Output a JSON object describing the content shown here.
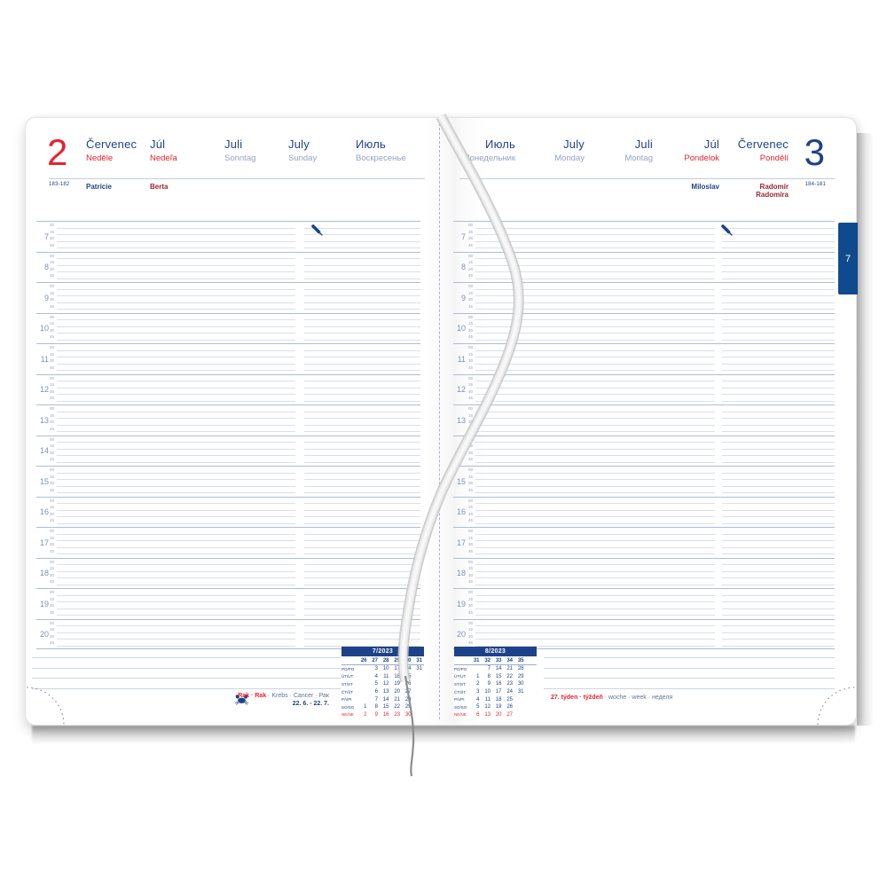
{
  "colors": {
    "blue": "#1e4289",
    "red": "#e5232e",
    "muted_blue": "#93a2c4",
    "maroon": "#9c2531",
    "tab_blue": "#0f4a8e"
  },
  "left_page": {
    "day_number": "2",
    "page_range": "183-182",
    "columns": [
      {
        "month": "Červenec",
        "day": "Neděle"
      },
      {
        "month": "Júl",
        "day": "Nedeľa"
      },
      {
        "month": "Juli",
        "day": "Sonntag"
      },
      {
        "month": "July",
        "day": "Sunday"
      },
      {
        "month": "Июль",
        "day": "Воскресенье"
      }
    ],
    "name_days": [
      {
        "name": "Patricie"
      },
      {
        "name": "Berta"
      }
    ]
  },
  "right_page": {
    "day_number": "3",
    "page_range": "184-181",
    "columns": [
      {
        "month": "Июль",
        "day": "Понедельник"
      },
      {
        "month": "July",
        "day": "Monday"
      },
      {
        "month": "Juli",
        "day": "Montag"
      },
      {
        "month": "Júl",
        "day": "Pondelok"
      },
      {
        "month": "Červenec",
        "day": "Pondělí"
      }
    ],
    "name_days": [
      {
        "name": "Miloslav"
      },
      {
        "name": "Radomír",
        "name2": "Radomíra"
      }
    ]
  },
  "schedule": {
    "hours": [
      "7",
      "8",
      "9",
      "10",
      "11",
      "12",
      "13",
      "14",
      "15",
      "16",
      "17",
      "18",
      "19",
      "20"
    ],
    "quarters": [
      "00",
      "15",
      "30",
      "45"
    ]
  },
  "mini_calendars": [
    {
      "title": "7/2023",
      "weeks": [
        "26",
        "27",
        "28",
        "29",
        "30",
        "31"
      ],
      "day_rows": [
        {
          "label": "PO/PO",
          "red": false,
          "values": [
            "",
            "3",
            "10",
            "17",
            "24",
            "31"
          ]
        },
        {
          "label": "ÚT/UT",
          "red": false,
          "values": [
            "",
            "4",
            "11",
            "18",
            "25",
            ""
          ]
        },
        {
          "label": "ST/ST",
          "red": false,
          "values": [
            "",
            "5",
            "12",
            "19",
            "26",
            ""
          ]
        },
        {
          "label": "ČT/ŠT",
          "red": false,
          "values": [
            "",
            "6",
            "13",
            "20",
            "27",
            ""
          ]
        },
        {
          "label": "PÁ/PI",
          "red": false,
          "values": [
            "",
            "7",
            "14",
            "21",
            "28",
            ""
          ]
        },
        {
          "label": "SO/SO",
          "red": false,
          "values": [
            "1",
            "8",
            "15",
            "22",
            "29",
            ""
          ]
        },
        {
          "label": "NE/NE",
          "red": true,
          "values": [
            "2",
            "9",
            "16",
            "23",
            "30",
            ""
          ]
        }
      ]
    },
    {
      "title": "8/2023",
      "weeks": [
        "31",
        "32",
        "33",
        "34",
        "35"
      ],
      "day_rows": [
        {
          "label": "PO/PO",
          "red": false,
          "values": [
            "",
            "7",
            "14",
            "21",
            "28"
          ]
        },
        {
          "label": "ÚT/UT",
          "red": false,
          "values": [
            "1",
            "8",
            "15",
            "22",
            "29"
          ]
        },
        {
          "label": "ST/ST",
          "red": false,
          "values": [
            "2",
            "9",
            "16",
            "23",
            "30"
          ]
        },
        {
          "label": "ČT/ŠT",
          "red": false,
          "values": [
            "3",
            "10",
            "17",
            "24",
            "31"
          ]
        },
        {
          "label": "PÁ/PI",
          "red": false,
          "values": [
            "4",
            "11",
            "18",
            "25",
            ""
          ]
        },
        {
          "label": "SO/SO",
          "red": false,
          "values": [
            "5",
            "12",
            "19",
            "26",
            ""
          ]
        },
        {
          "label": "NE/NE",
          "red": true,
          "values": [
            "6",
            "13",
            "20",
            "27",
            ""
          ]
        }
      ]
    }
  ],
  "zodiac": {
    "red_text": "Rak · Rak",
    "blue_text": " · Krebs · Cancer · Рак",
    "dates": "22. 6. - 22. 7."
  },
  "week_label": {
    "red_text": "27. týden · týždeň",
    "blue_text": " · woche · week · неделя"
  },
  "month_tab": "7"
}
